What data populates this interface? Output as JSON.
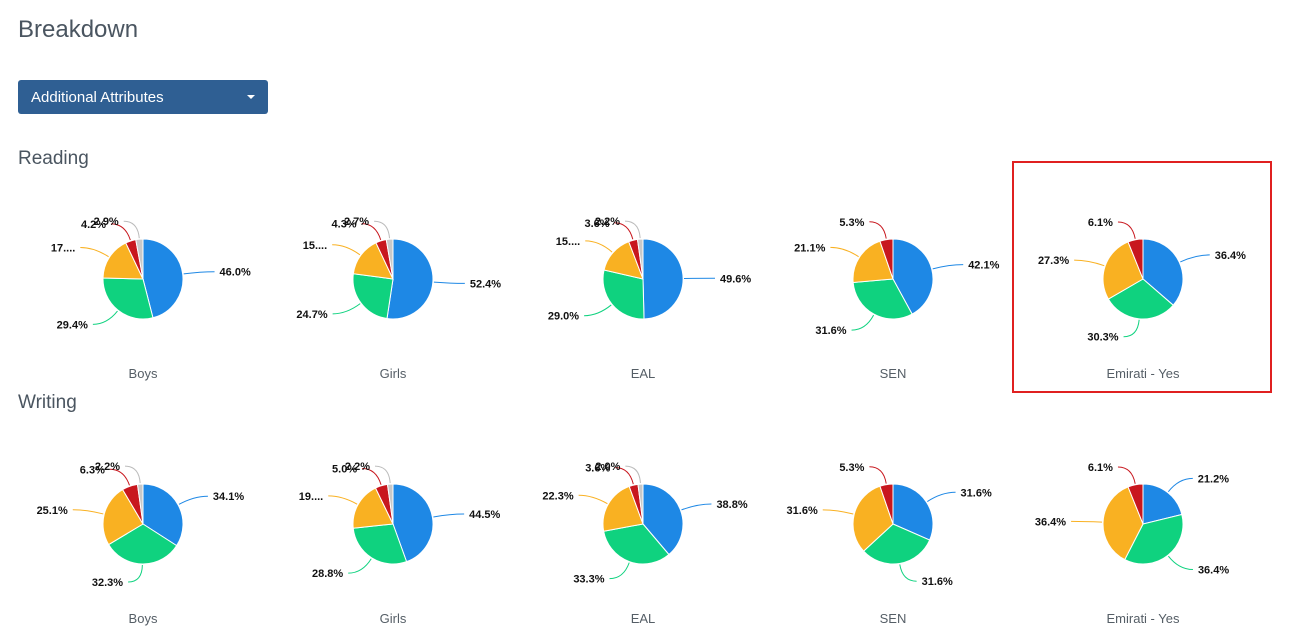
{
  "page": {
    "title": "Breakdown"
  },
  "dropdown": {
    "label": "Additional Attributes"
  },
  "colors": {
    "blue": "#1e88e5",
    "green": "#0fd27f",
    "orange": "#f9b122",
    "red": "#c8171e",
    "grey": "#c8c8c8"
  },
  "sections": [
    {
      "title": "Reading",
      "charts": [
        {
          "caption": "Boys",
          "chart_data": {
            "type": "pie",
            "slices": [
              {
                "value": 46.0,
                "label": "46.0%",
                "color": "#1e88e5"
              },
              {
                "value": 29.4,
                "label": "29.4%",
                "color": "#0fd27f"
              },
              {
                "value": 17.5,
                "label": "17....",
                "color": "#f9b122"
              },
              {
                "value": 4.2,
                "label": "4.2%",
                "color": "#c8171e"
              },
              {
                "value": 2.9,
                "label": "2.9%",
                "color": "#c8c8c8"
              }
            ]
          }
        },
        {
          "caption": "Girls",
          "chart_data": {
            "type": "pie",
            "slices": [
              {
                "value": 52.4,
                "label": "52.4%",
                "color": "#1e88e5"
              },
              {
                "value": 24.7,
                "label": "24.7%",
                "color": "#0fd27f"
              },
              {
                "value": 15.9,
                "label": "15....",
                "color": "#f9b122"
              },
              {
                "value": 4.3,
                "label": "4.3%",
                "color": "#c8171e"
              },
              {
                "value": 2.7,
                "label": "2.7%",
                "color": "#c8c8c8"
              }
            ]
          }
        },
        {
          "caption": "EAL",
          "chart_data": {
            "type": "pie",
            "slices": [
              {
                "value": 49.6,
                "label": "49.6%",
                "color": "#1e88e5"
              },
              {
                "value": 29.0,
                "label": "29.0%",
                "color": "#0fd27f"
              },
              {
                "value": 15.6,
                "label": "15....",
                "color": "#f9b122"
              },
              {
                "value": 3.6,
                "label": "3.6%",
                "color": "#c8171e"
              },
              {
                "value": 2.2,
                "label": "2.2%",
                "color": "#c8c8c8"
              }
            ]
          }
        },
        {
          "caption": "SEN",
          "chart_data": {
            "type": "pie",
            "slices": [
              {
                "value": 42.1,
                "label": "42.1%",
                "color": "#1e88e5"
              },
              {
                "value": 31.6,
                "label": "31.6%",
                "color": "#0fd27f"
              },
              {
                "value": 21.1,
                "label": "21.1%",
                "color": "#f9b122"
              },
              {
                "value": 5.3,
                "label": "5.3%",
                "color": "#c8171e"
              }
            ]
          }
        },
        {
          "caption": "Emirati - Yes",
          "chart_data": {
            "type": "pie",
            "slices": [
              {
                "value": 36.4,
                "label": "36.4%",
                "color": "#1e88e5"
              },
              {
                "value": 30.3,
                "label": "30.3%",
                "color": "#0fd27f"
              },
              {
                "value": 27.3,
                "label": "27.3%",
                "color": "#f9b122"
              },
              {
                "value": 6.1,
                "label": "6.1%",
                "color": "#c8171e"
              }
            ]
          }
        }
      ]
    },
    {
      "title": "Writing",
      "charts": [
        {
          "caption": "Boys",
          "chart_data": {
            "type": "pie",
            "slices": [
              {
                "value": 34.1,
                "label": "34.1%",
                "color": "#1e88e5"
              },
              {
                "value": 32.3,
                "label": "32.3%",
                "color": "#0fd27f"
              },
              {
                "value": 25.1,
                "label": "25.1%",
                "color": "#f9b122"
              },
              {
                "value": 6.3,
                "label": "6.3%",
                "color": "#c8171e"
              },
              {
                "value": 2.2,
                "label": "2.2%",
                "color": "#c8c8c8"
              }
            ]
          }
        },
        {
          "caption": "Girls",
          "chart_data": {
            "type": "pie",
            "slices": [
              {
                "value": 44.5,
                "label": "44.5%",
                "color": "#1e88e5"
              },
              {
                "value": 28.8,
                "label": "28.8%",
                "color": "#0fd27f"
              },
              {
                "value": 19.5,
                "label": "19....",
                "color": "#f9b122"
              },
              {
                "value": 5.0,
                "label": "5.0%",
                "color": "#c8171e"
              },
              {
                "value": 2.2,
                "label": "2.2%",
                "color": "#c8c8c8"
              }
            ]
          }
        },
        {
          "caption": "EAL",
          "chart_data": {
            "type": "pie",
            "slices": [
              {
                "value": 38.8,
                "label": "38.8%",
                "color": "#1e88e5"
              },
              {
                "value": 33.3,
                "label": "33.3%",
                "color": "#0fd27f"
              },
              {
                "value": 22.3,
                "label": "22.3%",
                "color": "#f9b122"
              },
              {
                "value": 3.6,
                "label": "3.6%",
                "color": "#c8171e"
              },
              {
                "value": 2.0,
                "label": "2.0%",
                "color": "#c8c8c8"
              }
            ]
          }
        },
        {
          "caption": "SEN",
          "chart_data": {
            "type": "pie",
            "slices": [
              {
                "value": 31.6,
                "label": "31.6%",
                "color": "#1e88e5"
              },
              {
                "value": 31.6,
                "label": "31.6%",
                "color": "#0fd27f"
              },
              {
                "value": 31.6,
                "label": "31.6%",
                "color": "#f9b122"
              },
              {
                "value": 5.3,
                "label": "5.3%",
                "color": "#c8171e"
              }
            ]
          }
        },
        {
          "caption": "Emirati - Yes",
          "chart_data": {
            "type": "pie",
            "slices": [
              {
                "value": 21.2,
                "label": "21.2%",
                "color": "#1e88e5"
              },
              {
                "value": 36.4,
                "label": "36.4%",
                "color": "#0fd27f"
              },
              {
                "value": 36.4,
                "label": "36.4%",
                "color": "#f9b122"
              },
              {
                "value": 6.1,
                "label": "6.1%",
                "color": "#c8171e"
              }
            ]
          }
        }
      ]
    }
  ]
}
